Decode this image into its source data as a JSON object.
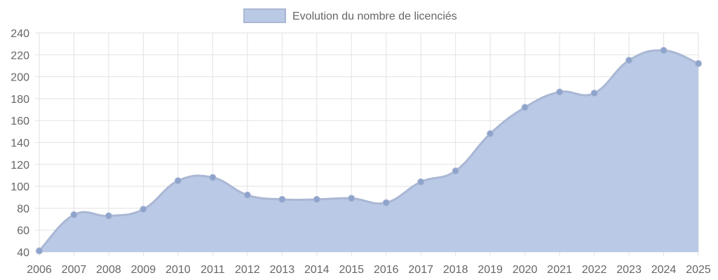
{
  "chart_data": {
    "type": "area",
    "title": "",
    "xlabel": "",
    "ylabel": "",
    "x": [
      "2006",
      "2007",
      "2008",
      "2009",
      "2010",
      "2011",
      "2012",
      "2013",
      "2014",
      "2015",
      "2016",
      "2017",
      "2018",
      "2019",
      "2020",
      "2021",
      "2022",
      "2023",
      "2024",
      "2025"
    ],
    "series": [
      {
        "name": "Evolution du nombre de licenciés",
        "values": [
          41,
          74,
          73,
          79,
          105,
          108,
          92,
          88,
          88,
          89,
          85,
          104,
          114,
          148,
          172,
          186,
          185,
          215,
          224,
          212
        ]
      }
    ],
    "ylim": [
      40,
      240
    ],
    "yticks": [
      40,
      60,
      80,
      100,
      120,
      140,
      160,
      180,
      200,
      220,
      240
    ],
    "grid": true,
    "legend_position": "top",
    "colors": {
      "fill": "#b9c9e6",
      "line": "#aab7d4",
      "point": "#8ea4cc",
      "grid": "#e2e2e2",
      "text": "#666666"
    }
  }
}
